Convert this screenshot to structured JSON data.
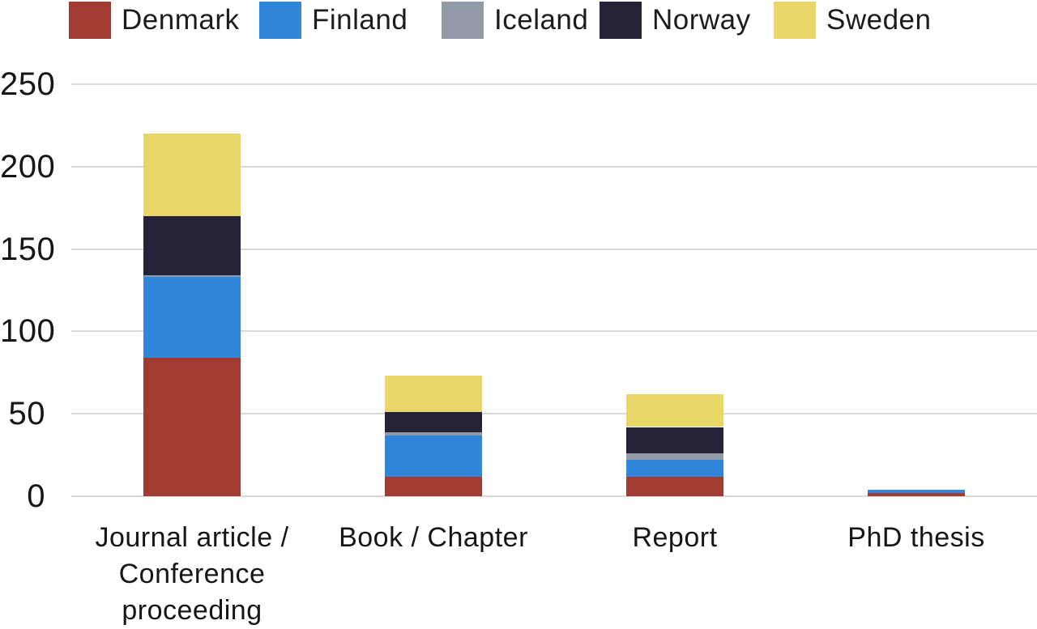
{
  "chart_data": {
    "type": "bar",
    "stacked": true,
    "title": "",
    "categories": [
      "Journal article / Conference proceeding",
      "Book / Chapter",
      "Report",
      "PhD thesis"
    ],
    "category_lines": [
      [
        "Journal article /",
        "Conference",
        "proceeding"
      ],
      [
        "Book / Chapter"
      ],
      [
        "Report"
      ],
      [
        "PhD thesis"
      ]
    ],
    "series": [
      {
        "name": "Denmark",
        "color": "#A23B32",
        "values": [
          84,
          12,
          12,
          2
        ]
      },
      {
        "name": "Finland",
        "color": "#2F86DB",
        "values": [
          49,
          25,
          10,
          2
        ]
      },
      {
        "name": "Iceland",
        "color": "#9299A7",
        "values": [
          1,
          2,
          4,
          0
        ]
      },
      {
        "name": "Norway",
        "color": "#242338",
        "values": [
          36,
          12,
          16,
          0
        ]
      },
      {
        "name": "Sweden",
        "color": "#EAD568",
        "values": [
          50,
          22,
          20,
          0
        ]
      }
    ],
    "stack_totals": [
      220,
      73,
      62,
      4
    ],
    "y_ticks": [
      0,
      50,
      100,
      150,
      200,
      250
    ],
    "ylim": [
      0,
      250
    ],
    "grid": true,
    "legend_position": "top"
  },
  "colors": {
    "background": "#FFFFFF",
    "gridline": "#D9D9D9",
    "axis_text": "#161616"
  }
}
